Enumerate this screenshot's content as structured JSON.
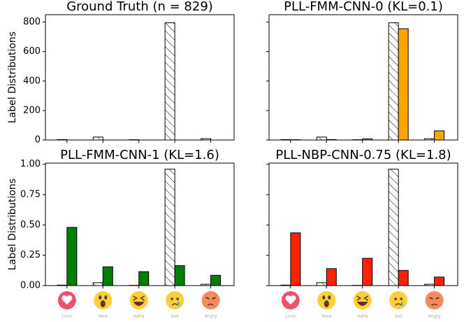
{
  "chart_data": [
    {
      "type": "bar",
      "title": "Ground Truth (n = 829)",
      "ylabel": "Label Distributions",
      "ylim": [
        0,
        850
      ],
      "yticks": [
        0,
        200,
        400,
        600,
        800
      ],
      "show_ytick_labels": true,
      "series": [
        {
          "color": "#ffffff",
          "hatch": true,
          "values": [
            3,
            20,
            2,
            795,
            9
          ]
        }
      ]
    },
    {
      "type": "bar",
      "title": "PLL-FMM-CNN-0 (KL=0.1)",
      "ylim": [
        0,
        850
      ],
      "yticks": [
        0,
        200,
        400,
        600,
        800
      ],
      "show_ytick_labels": false,
      "series": [
        {
          "color": "#ffffff",
          "hatch": true,
          "values": [
            3,
            20,
            2,
            795,
            9
          ]
        },
        {
          "color": "#ffa500",
          "hatch": false,
          "values": [
            2,
            3,
            8,
            755,
            62
          ]
        }
      ]
    },
    {
      "type": "bar",
      "title": "PLL-FMM-CNN-1 (KL=1.6)",
      "ylabel": "Label Distributions",
      "categories": [
        "Love",
        "Wow",
        "Haha",
        "Sad",
        "Angry"
      ],
      "ylim": [
        0,
        1.01
      ],
      "yticks": [
        {
          "value": 0,
          "label": "0.00"
        },
        0.25,
        {
          "value": 0.5,
          "label": "0.50"
        },
        0.75,
        {
          "value": 1,
          "label": "1.00"
        }
      ],
      "show_ytick_labels": true,
      "series": [
        {
          "color": "#ffffff",
          "hatch": true,
          "values": [
            0.004,
            0.024,
            0.002,
            0.96,
            0.011
          ]
        },
        {
          "color": "#008000",
          "hatch": false,
          "values": [
            0.48,
            0.155,
            0.115,
            0.165,
            0.085
          ]
        }
      ]
    },
    {
      "type": "bar",
      "title": "PLL-NBP-CNN-0.75 (KL=1.8)",
      "categories": [
        "Love",
        "Wow",
        "Haha",
        "Sad",
        "Angry"
      ],
      "ylim": [
        0,
        1.01
      ],
      "yticks": [
        0,
        0.25,
        0.5,
        0.75,
        1
      ],
      "show_ytick_labels": false,
      "series": [
        {
          "color": "#ffffff",
          "hatch": true,
          "values": [
            0.004,
            0.024,
            0.002,
            0.96,
            0.011
          ]
        },
        {
          "color": "#ff2200",
          "hatch": false,
          "values": [
            0.435,
            0.14,
            0.225,
            0.125,
            0.07
          ]
        }
      ]
    }
  ]
}
